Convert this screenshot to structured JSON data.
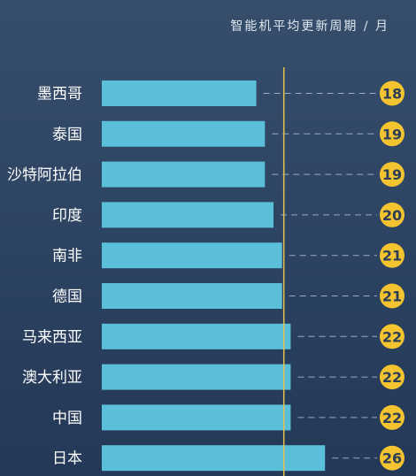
{
  "chart_data": {
    "type": "bar",
    "orientation": "horizontal",
    "title": "智能机平均更新周期 / 月",
    "categories": [
      "墨西哥",
      "泰国",
      "沙特阿拉伯",
      "印度",
      "南非",
      "德国",
      "马来西亚",
      "澳大利亚",
      "中国",
      "日本"
    ],
    "values": [
      18,
      19,
      19,
      20,
      21,
      21,
      22,
      22,
      22,
      26
    ],
    "reference_line": 21,
    "grid": false,
    "legend": "none"
  },
  "colors": {
    "bar": "#5bbfd9",
    "badge": "#f4c430",
    "reference_line": "#e6c24a",
    "dash": "#9aaabf"
  }
}
